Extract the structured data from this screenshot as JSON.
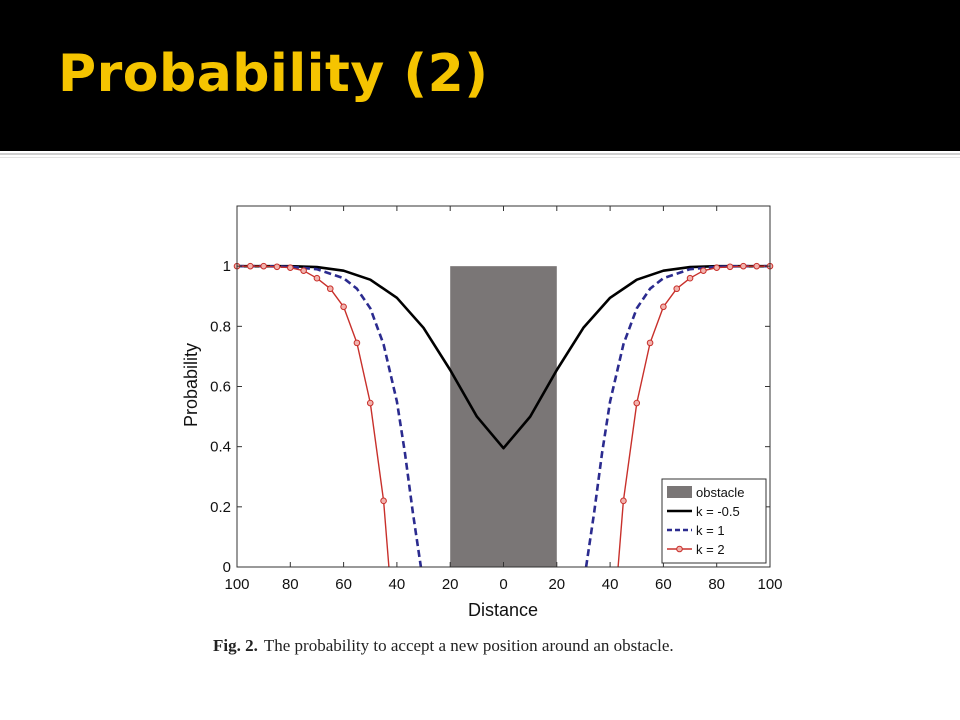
{
  "slide": {
    "title": "Probability (2)"
  },
  "caption": {
    "label": "Fig. 2.",
    "text": "The probability to accept a new position around an obstacle."
  },
  "colors": {
    "title": "#f5c400",
    "title_bar": "#000000",
    "obstacle": "#7a7676",
    "series_k_neg05": "#000000",
    "series_k1": "#2b2b8f",
    "series_k2": "#c8302b"
  },
  "chart_data": {
    "type": "line",
    "xlabel": "Distance",
    "ylabel": "Probability",
    "xlim": [
      -100,
      100
    ],
    "ylim": [
      0,
      1.2
    ],
    "x_ticks": [
      -100,
      -80,
      -60,
      -40,
      -20,
      0,
      20,
      40,
      60,
      80,
      100
    ],
    "x_tick_labels": [
      "100",
      "80",
      "60",
      "40",
      "20",
      "0",
      "20",
      "40",
      "60",
      "80",
      "100"
    ],
    "y_ticks": [
      0,
      0.2,
      0.4,
      0.6,
      0.8,
      1
    ],
    "y_tick_labels": [
      "0",
      "0.2",
      "0.4",
      "0.6",
      "0.8",
      "1"
    ],
    "grid": false,
    "legend_position": "bottom-right",
    "obstacle": {
      "label": "obstacle",
      "x_range": [
        -20,
        20
      ],
      "height": 1.0
    },
    "series": [
      {
        "name": "k = -0.5",
        "style": "solid",
        "x": [
          -100,
          -90,
          -80,
          -70,
          -60,
          -50,
          -40,
          -30,
          -20,
          -10,
          0,
          10,
          20,
          30,
          40,
          50,
          60,
          70,
          80,
          90,
          100
        ],
        "y": [
          1.0,
          1.0,
          1.0,
          0.997,
          0.985,
          0.955,
          0.895,
          0.795,
          0.655,
          0.5,
          0.395,
          0.5,
          0.655,
          0.795,
          0.895,
          0.955,
          0.985,
          0.997,
          1.0,
          1.0,
          1.0
        ]
      },
      {
        "name": "k = 1",
        "style": "dashed",
        "x": [
          -100,
          -90,
          -80,
          -70,
          -60,
          -55,
          -50,
          -45,
          -40,
          -37,
          -34,
          -31,
          31,
          34,
          37,
          40,
          45,
          50,
          55,
          60,
          70,
          80,
          90,
          100
        ],
        "y": [
          1.0,
          1.0,
          0.998,
          0.99,
          0.96,
          0.925,
          0.86,
          0.74,
          0.55,
          0.38,
          0.18,
          0.0,
          0.0,
          0.18,
          0.38,
          0.55,
          0.74,
          0.86,
          0.925,
          0.96,
          0.99,
          0.998,
          1.0,
          1.0
        ]
      },
      {
        "name": "k = 2",
        "style": "solid-markers",
        "x": [
          -100,
          -95,
          -90,
          -85,
          -80,
          -75,
          -70,
          -65,
          -60,
          -55,
          -50,
          -45,
          -43,
          43,
          45,
          50,
          55,
          60,
          65,
          70,
          75,
          80,
          85,
          90,
          95,
          100
        ],
        "y": [
          1.0,
          1.0,
          1.0,
          0.998,
          0.995,
          0.985,
          0.96,
          0.925,
          0.865,
          0.745,
          0.545,
          0.22,
          0.0,
          0.0,
          0.22,
          0.545,
          0.745,
          0.865,
          0.925,
          0.96,
          0.985,
          0.995,
          0.998,
          1.0,
          1.0,
          1.0
        ]
      }
    ]
  }
}
